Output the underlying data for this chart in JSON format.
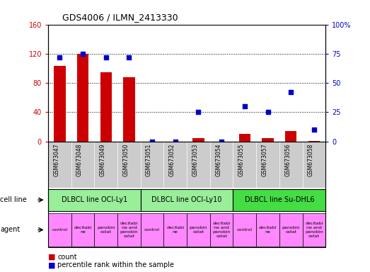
{
  "title": "GDS4006 / ILMN_2413330",
  "samples": [
    "GSM673047",
    "GSM673048",
    "GSM673049",
    "GSM673050",
    "GSM673051",
    "GSM673052",
    "GSM673053",
    "GSM673054",
    "GSM673055",
    "GSM673057",
    "GSM673056",
    "GSM673058"
  ],
  "counts": [
    103,
    120,
    95,
    88,
    0,
    0,
    5,
    0,
    10,
    5,
    14,
    1
  ],
  "percentiles": [
    72,
    75,
    72,
    72,
    0,
    0,
    25,
    0,
    30,
    25,
    42,
    10
  ],
  "left_ylim": [
    0,
    160
  ],
  "right_ylim": [
    0,
    100
  ],
  "left_yticks": [
    0,
    40,
    80,
    120,
    160
  ],
  "right_yticks": [
    0,
    25,
    50,
    75,
    100
  ],
  "left_yticklabels": [
    "0",
    "40",
    "80",
    "120",
    "160"
  ],
  "right_yticklabels": [
    "0",
    "25",
    "50",
    "75",
    "100%"
  ],
  "bar_color": "#cc0000",
  "dot_color": "#0000cc",
  "cell_lines": [
    {
      "label": "DLBCL line OCI-Ly1",
      "start": 0,
      "end": 4,
      "color": "#99ee99"
    },
    {
      "label": "DLBCL line OCI-Ly10",
      "start": 4,
      "end": 8,
      "color": "#99ee99"
    },
    {
      "label": "DLBCL line Su-DHL6",
      "start": 8,
      "end": 12,
      "color": "#44dd44"
    }
  ],
  "agents": [
    "control",
    "decitabi\nne",
    "panobin\nostat",
    "decitabi\nne and\npanobin\nostat",
    "control",
    "decitabi\nne",
    "panobin\nostat",
    "decitabi\nne and\npanobin\nostat",
    "control",
    "decitabi\nne",
    "panobin\nostat",
    "decitabi\nne and\npanobin\nostat"
  ],
  "tick_color_left": "#cc0000",
  "tick_color_right": "#0000cc",
  "bg_color": "#ffffff",
  "plot_bg": "#ffffff",
  "grid_color": "#000000",
  "sample_bg": "#cccccc",
  "agent_bg": "#ff88ff",
  "cell_line_label_color": "#000000"
}
